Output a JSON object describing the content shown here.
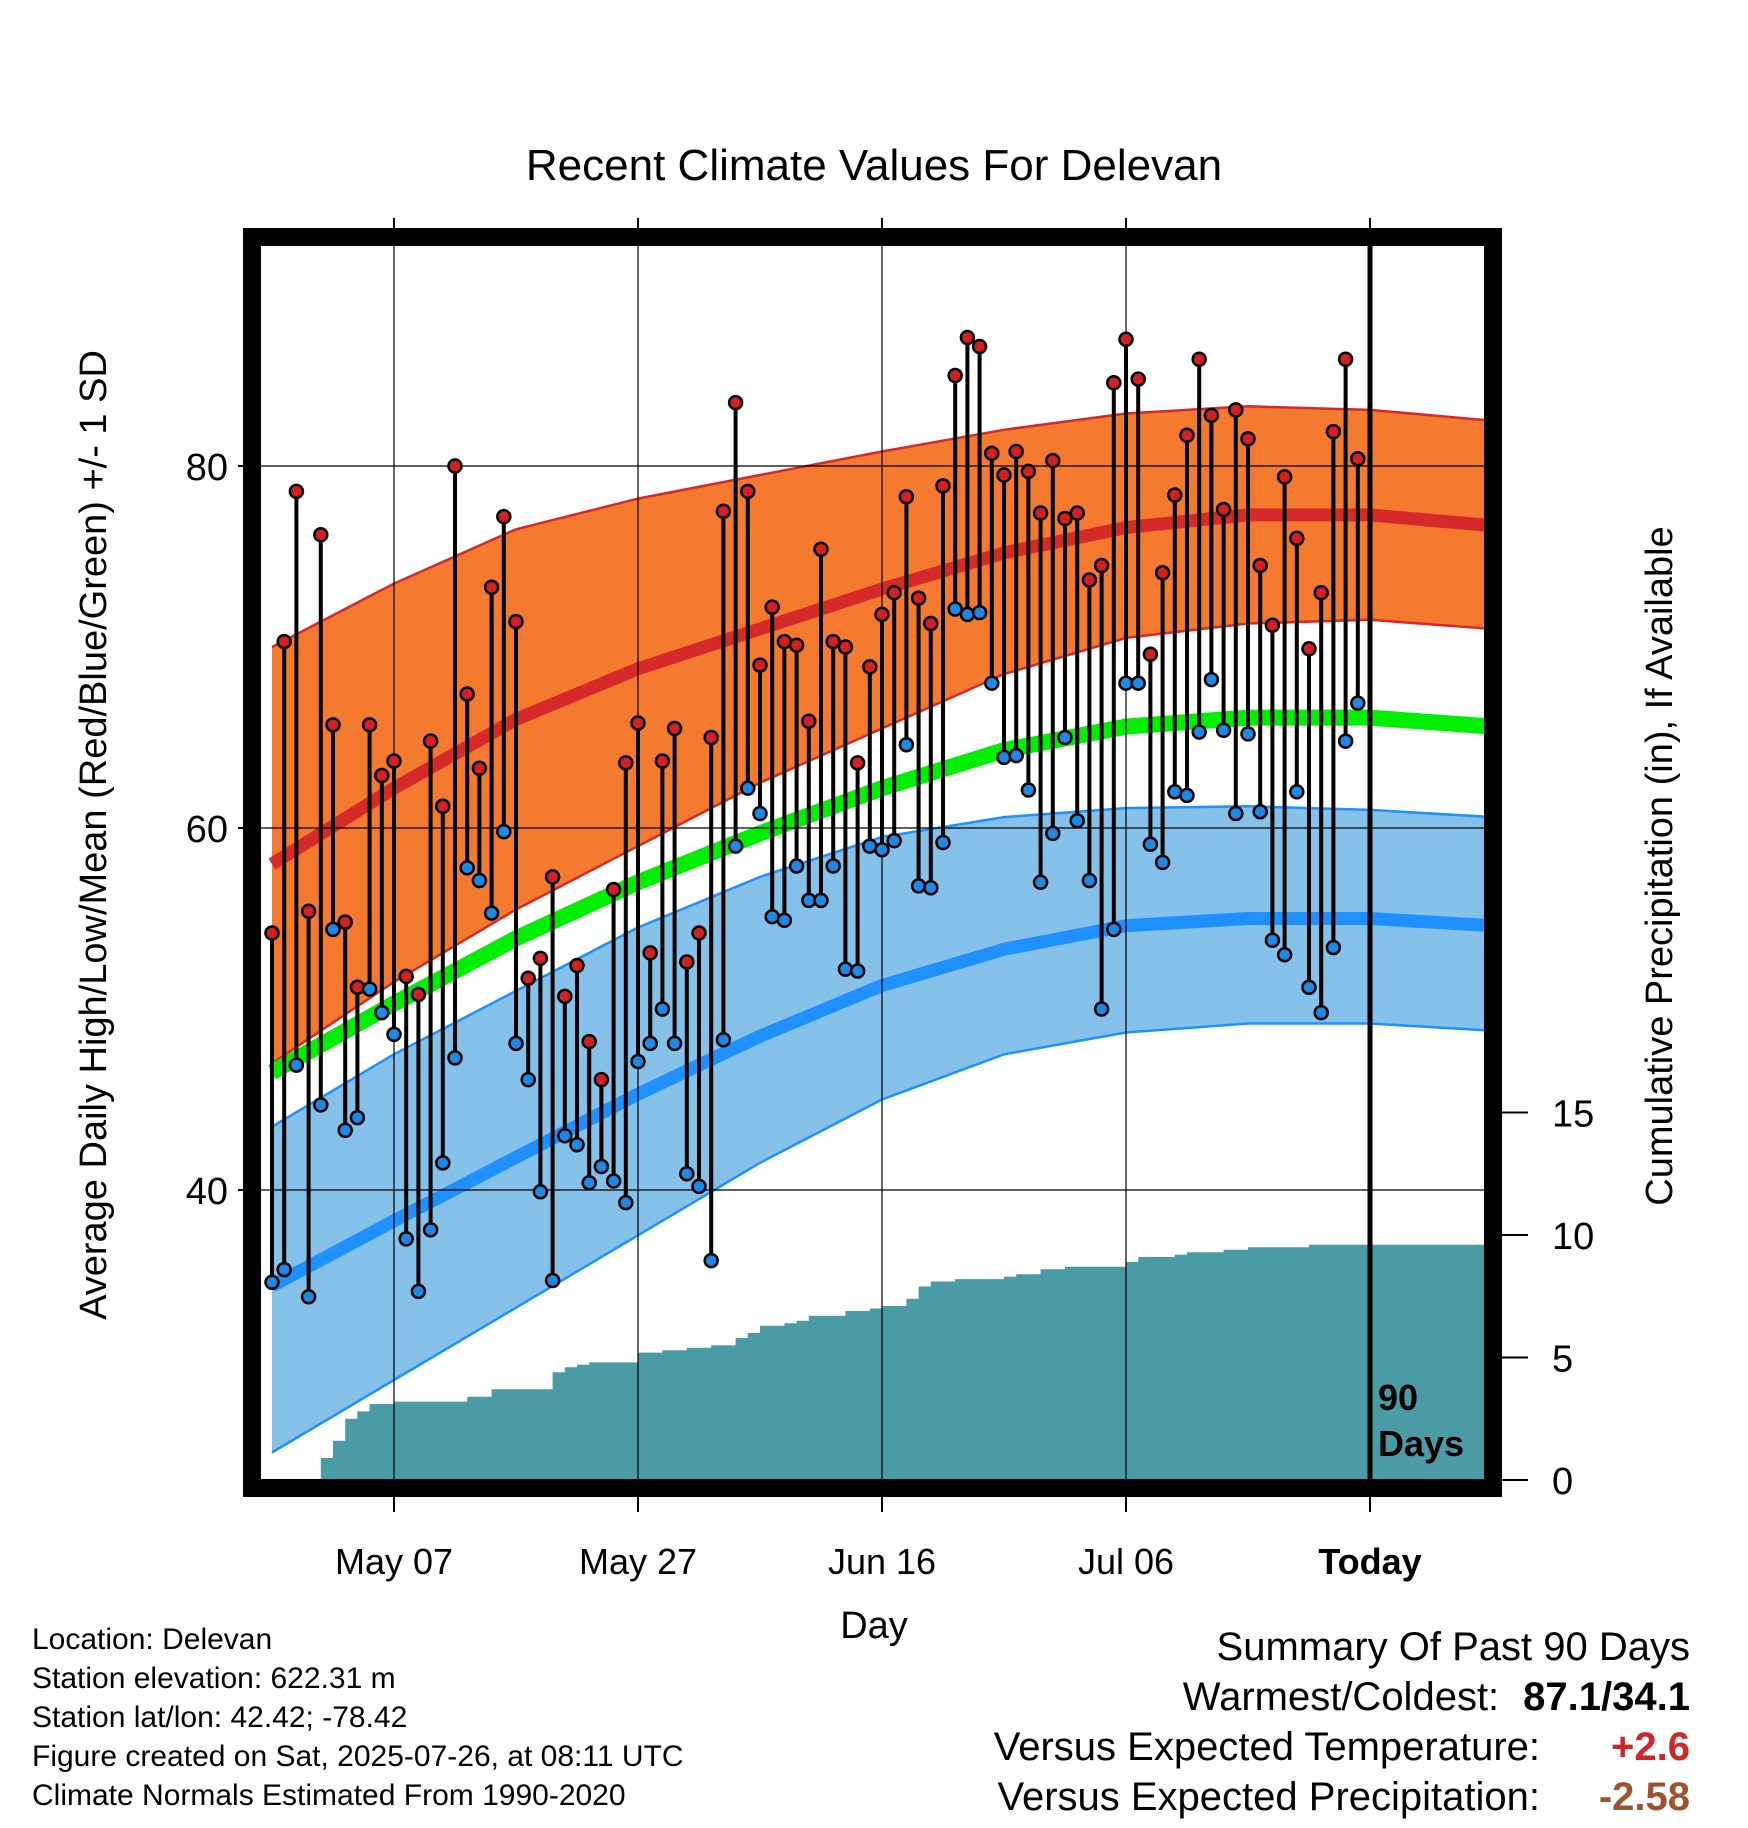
{
  "chart_data": {
    "type": "line",
    "title": "Recent Climate Values For Delevan",
    "xlabel": "Day",
    "ylabel": "Average Daily High/Low/Mean (Red/Blue/Green) +/- 1 SD",
    "y2label": "Cumulative Precipitation (in), If Available",
    "ylim": [
      25,
      95
    ],
    "y2lim": [
      0,
      40
    ],
    "yticks": [
      40,
      60,
      80
    ],
    "y2ticks": [
      0,
      5,
      10,
      15
    ],
    "xlim": [
      -100,
      0
    ],
    "xticks": [
      {
        "x": -80,
        "label": "May 07"
      },
      {
        "x": -60,
        "label": "May 27"
      },
      {
        "x": -40,
        "label": "Jun 16"
      },
      {
        "x": -20,
        "label": "Jul 06"
      },
      {
        "x": 0,
        "label": "Today"
      }
    ],
    "today_marker": {
      "x": 0,
      "label_line1": "90",
      "label_line2": "Days"
    },
    "grid": true,
    "colors": {
      "high_band": "#f47a30",
      "high_mean_line": "#d52a29",
      "low_band": "#85c1e8",
      "low_mean_line": "#1e90ff",
      "band_edge_low": "#1e90ff",
      "daily_mean_line": "#00ee00",
      "precip_fill": "#4a9ba5",
      "high_point": "#d32020",
      "low_point": "#1e88e5"
    },
    "normal_high": {
      "x": [
        -90,
        -80,
        -70,
        -60,
        -50,
        -40,
        -30,
        -20,
        -10,
        0,
        10
      ],
      "mean": [
        58,
        62.2,
        66,
        68.8,
        71,
        73.2,
        75.2,
        76.6,
        77.3,
        77.3,
        76.7
      ],
      "upper": [
        70,
        73.5,
        76.5,
        78.2,
        79.5,
        80.8,
        82,
        82.9,
        83.3,
        83.1,
        82.5
      ],
      "lower": [
        47,
        51.5,
        55.5,
        59,
        62.5,
        65.5,
        68.5,
        70.5,
        71.3,
        71.5,
        71
      ]
    },
    "normal_low": {
      "x": [
        -90,
        -80,
        -70,
        -60,
        -50,
        -40,
        -30,
        -20,
        -10,
        0,
        10
      ],
      "mean": [
        34.7,
        38.3,
        41.8,
        45.3,
        48.5,
        51.3,
        53.3,
        54.6,
        55,
        55,
        54.6
      ],
      "upper": [
        43.5,
        47.5,
        51,
        54.5,
        57.3,
        59.5,
        60.6,
        61.1,
        61.2,
        61,
        60.6
      ],
      "lower": [
        25.5,
        29.5,
        33.5,
        37.5,
        41.5,
        45,
        47.5,
        48.7,
        49.2,
        49.2,
        48.8
      ]
    },
    "normal_mean": {
      "x": [
        -90,
        -80,
        -70,
        -60,
        -50,
        -40,
        -30,
        -20,
        -10,
        0,
        10
      ],
      "values": [
        46.5,
        50.3,
        53.9,
        57,
        59.7,
        62.2,
        64.3,
        65.6,
        66.1,
        66.1,
        65.6
      ]
    },
    "daily_highs": [
      54.2,
      70.3,
      78.6,
      55.4,
      76.2,
      65.7,
      54.8,
      51.2,
      65.7,
      62.9,
      63.7,
      51.8,
      50.8,
      64.8,
      61.2,
      80,
      67.4,
      63.3,
      73.3,
      77.2,
      71.4,
      51.7,
      52.8,
      57.3,
      50.7,
      52.4,
      48.2,
      46.1,
      56.6,
      63.6,
      65.8,
      53.1,
      63.7,
      65.5,
      52.6,
      54.2,
      65,
      77.5,
      83.5,
      78.6,
      69,
      72.2,
      70.3,
      70.1,
      65.9,
      75.4,
      70.3,
      70,
      63.6,
      68.9,
      71.8,
      73,
      78.3,
      72.7,
      71.3,
      78.9,
      85,
      87.1,
      86.6,
      80.7,
      79.5,
      80.8,
      79.7,
      77.4,
      80.3,
      77.1,
      77.4,
      73.7,
      74.5,
      84.6,
      87,
      84.8,
      69.6,
      74.1,
      78.4,
      81.7,
      85.9,
      82.8,
      77.6,
      83.1,
      81.5,
      74.5,
      71.2,
      79.4,
      76,
      69.9,
      73,
      81.9,
      85.9,
      80.4
    ],
    "daily_lows": [
      34.9,
      35.6,
      46.9,
      34.1,
      44.7,
      54.4,
      43.3,
      44,
      51.1,
      49.8,
      48.6,
      37.3,
      34.4,
      37.8,
      41.5,
      47.3,
      57.8,
      57.1,
      55.3,
      59.8,
      48.1,
      46.1,
      39.9,
      35,
      43,
      42.5,
      40.4,
      41.3,
      40.5,
      39.3,
      47.1,
      48.1,
      50,
      48.1,
      40.9,
      40.2,
      36.1,
      48.3,
      59,
      62.2,
      60.8,
      55.1,
      54.9,
      57.9,
      56,
      56,
      57.9,
      52.2,
      52.1,
      59,
      58.8,
      59.3,
      64.6,
      56.8,
      56.7,
      59.2,
      72.1,
      71.8,
      71.9,
      68,
      63.9,
      64,
      62.1,
      57,
      59.7,
      65,
      60.4,
      57.1,
      50,
      54.4,
      68,
      68,
      59.1,
      58.1,
      62,
      61.8,
      65.3,
      68.2,
      65.4,
      60.8,
      65.2,
      60.9,
      53.8,
      53,
      62,
      51.2,
      49.8,
      53.4,
      64.8,
      66.9
    ],
    "precip_cumulative": {
      "x": [
        -86.5,
        -86,
        -85,
        -84,
        -83,
        -82,
        -80,
        -79,
        -78,
        -74,
        -72,
        -70,
        -67,
        -66,
        -65,
        -64,
        -62,
        -60,
        -58,
        -56,
        -54,
        -52,
        -51,
        -50,
        -48,
        -47,
        -46,
        -43,
        -41,
        -40,
        -38,
        -37,
        -36,
        -34,
        -30,
        -29,
        -27,
        -25,
        -20,
        -19,
        -16,
        -15,
        -14,
        -12,
        -10,
        -8,
        -5,
        -3,
        0,
        10
      ],
      "values": [
        0,
        0.9,
        1.6,
        2.5,
        2.8,
        3.1,
        3.2,
        3.2,
        3.2,
        3.4,
        3.7,
        3.7,
        4.4,
        4.6,
        4.7,
        4.8,
        4.8,
        5.2,
        5.3,
        5.4,
        5.5,
        5.8,
        6,
        6.3,
        6.4,
        6.5,
        6.7,
        6.9,
        7,
        7.1,
        7.4,
        7.9,
        8.1,
        8.2,
        8.3,
        8.4,
        8.6,
        8.7,
        8.9,
        9.1,
        9.2,
        9.3,
        9.3,
        9.4,
        9.5,
        9.5,
        9.6,
        9.6,
        9.6,
        9.6
      ]
    }
  },
  "footer": {
    "info_lines": [
      "Location: Delevan",
      "Station elevation: 622.31 m",
      "Station lat/lon: 42.42; -78.42",
      "Figure created on Sat, 2025-07-26, at 08:11 UTC",
      "Climate Normals Estimated From 1990-2020"
    ],
    "summary": {
      "heading": "Summary Of Past 90 Days",
      "warm_cold_label": "Warmest/Coldest:",
      "warm_cold_value": "87.1/34.1",
      "temp_label": "Versus Expected Temperature:",
      "temp_value": "+2.6",
      "temp_color": "#d0262a",
      "precip_label": "Versus Expected Precipitation:",
      "precip_value": "-2.58",
      "precip_color": "#a0522d"
    }
  }
}
